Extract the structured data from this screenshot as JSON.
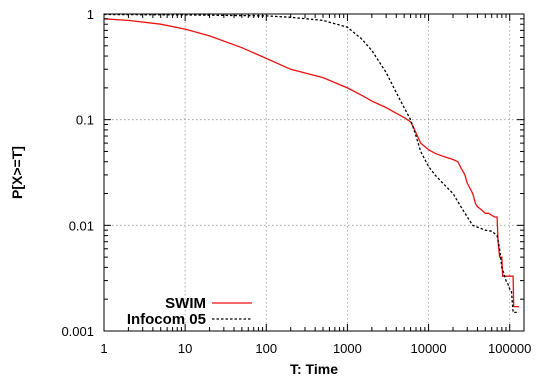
{
  "chart_data": {
    "type": "line",
    "title": "",
    "xlabel": "T: Time",
    "ylabel": "P[X>=T]",
    "xscale": "log",
    "yscale": "log",
    "xlim": [
      1,
      150000
    ],
    "ylim": [
      0.001,
      1
    ],
    "grid": true,
    "grid_style": "dotted",
    "legend_position": "bottom-left",
    "x_ticks": [
      {
        "value": 1,
        "label": "1"
      },
      {
        "value": 10,
        "label": "10"
      },
      {
        "value": 100,
        "label": "100"
      },
      {
        "value": 1000,
        "label": "1000"
      },
      {
        "value": 10000,
        "label": "10000"
      },
      {
        "value": 100000,
        "label": "100000"
      }
    ],
    "y_ticks": [
      {
        "value": 1,
        "label": "1"
      },
      {
        "value": 0.1,
        "label": "0.1"
      },
      {
        "value": 0.01,
        "label": "0.01"
      },
      {
        "value": 0.001,
        "label": "0.001"
      }
    ],
    "series": [
      {
        "name": "SWIM",
        "color": "#e8120f",
        "line_style": "solid",
        "points": [
          [
            1,
            0.9
          ],
          [
            2,
            0.87
          ],
          [
            5,
            0.8
          ],
          [
            10,
            0.72
          ],
          [
            20,
            0.62
          ],
          [
            50,
            0.48
          ],
          [
            100,
            0.38
          ],
          [
            200,
            0.3
          ],
          [
            500,
            0.25
          ],
          [
            1000,
            0.2
          ],
          [
            1500,
            0.17
          ],
          [
            2000,
            0.15
          ],
          [
            3000,
            0.13
          ],
          [
            4000,
            0.115
          ],
          [
            5000,
            0.105
          ],
          [
            6000,
            0.095
          ],
          [
            6500,
            0.085
          ],
          [
            7000,
            0.075
          ],
          [
            8000,
            0.06
          ],
          [
            10000,
            0.052
          ],
          [
            12000,
            0.048
          ],
          [
            15000,
            0.045
          ],
          [
            20000,
            0.042
          ],
          [
            23000,
            0.04
          ],
          [
            25000,
            0.035
          ],
          [
            28000,
            0.03
          ],
          [
            30000,
            0.025
          ],
          [
            35000,
            0.02
          ],
          [
            38000,
            0.016
          ],
          [
            40000,
            0.015
          ],
          [
            45000,
            0.014
          ],
          [
            50000,
            0.013
          ],
          [
            55000,
            0.013
          ],
          [
            65000,
            0.012
          ],
          [
            70000,
            0.012
          ],
          [
            72000,
            0.007
          ],
          [
            75000,
            0.005
          ],
          [
            80000,
            0.005
          ],
          [
            82000,
            0.0033
          ],
          [
            85000,
            0.0033
          ],
          [
            95000,
            0.0033
          ],
          [
            100000,
            0.0033
          ],
          [
            110000,
            0.0033
          ],
          [
            112000,
            0.0017
          ],
          [
            130000,
            0.0017
          ]
        ]
      },
      {
        "name": "Infocom 05",
        "color": "#000000",
        "line_style": "dashed",
        "points": [
          [
            1,
            0.99
          ],
          [
            10,
            0.98
          ],
          [
            100,
            0.96
          ],
          [
            200,
            0.93
          ],
          [
            500,
            0.87
          ],
          [
            1000,
            0.75
          ],
          [
            1500,
            0.58
          ],
          [
            2000,
            0.45
          ],
          [
            3000,
            0.28
          ],
          [
            4000,
            0.18
          ],
          [
            5000,
            0.13
          ],
          [
            6000,
            0.1
          ],
          [
            7000,
            0.07
          ],
          [
            8000,
            0.05
          ],
          [
            9000,
            0.042
          ],
          [
            10000,
            0.036
          ],
          [
            12000,
            0.03
          ],
          [
            15000,
            0.025
          ],
          [
            20000,
            0.02
          ],
          [
            25000,
            0.015
          ],
          [
            30000,
            0.012
          ],
          [
            35000,
            0.01
          ],
          [
            50000,
            0.009
          ],
          [
            60000,
            0.0088
          ],
          [
            70000,
            0.008
          ],
          [
            75000,
            0.006
          ],
          [
            80000,
            0.004
          ],
          [
            90000,
            0.003
          ],
          [
            95000,
            0.0028
          ],
          [
            100000,
            0.0025
          ],
          [
            105000,
            0.0024
          ],
          [
            110000,
            0.0015
          ],
          [
            130000,
            0.0015
          ]
        ]
      }
    ]
  }
}
